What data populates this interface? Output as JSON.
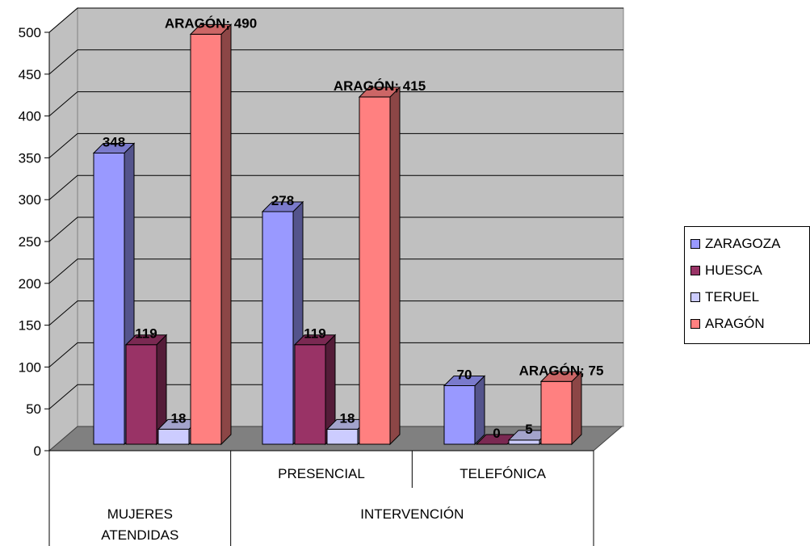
{
  "chart_data": {
    "type": "bar",
    "title": "",
    "xlabel": "",
    "ylabel": "",
    "ylim": [
      0,
      500
    ],
    "yticks": [
      0,
      50,
      100,
      150,
      200,
      250,
      300,
      350,
      400,
      450,
      500
    ],
    "grid": true,
    "legend_position": "right",
    "categories": [
      "MUJERES ATENDIDAS",
      "PRESENCIAL",
      "TELEFÓNICA"
    ],
    "category_groups": [
      {
        "label": "MUJERES ATENDIDAS",
        "span": 1
      },
      {
        "label": "INTERVENCIÓN",
        "span": 2
      }
    ],
    "category_lines": {
      "MUJERES ATENDIDAS": [
        "MUJERES",
        "ATENDIDAS"
      ],
      "PRESENCIAL": [
        "PRESENCIAL"
      ],
      "TELEFÓNICA": [
        "TELEFÓNICA"
      ],
      "INTERVENCIÓN": [
        "INTERVENCIÓN"
      ]
    },
    "series": [
      {
        "name": "ZARAGOZA",
        "values": [
          348,
          278,
          70
        ],
        "color": "#9999ff",
        "labels": [
          "348",
          "278",
          "70"
        ]
      },
      {
        "name": "HUESCA",
        "values": [
          119,
          119,
          0
        ],
        "color": "#993366",
        "labels": [
          "119",
          "119",
          "0"
        ]
      },
      {
        "name": "TERUEL",
        "values": [
          18,
          18,
          5
        ],
        "color": "#ccccff",
        "labels": [
          "18",
          "18",
          "5"
        ]
      },
      {
        "name": "ARAGÓN",
        "values": [
          490,
          415,
          75
        ],
        "color": "#ff8080",
        "labels": [
          "ARAGÓN; 490",
          "ARAGÓN; 415",
          "ARAGÓN; 75"
        ]
      }
    ]
  }
}
